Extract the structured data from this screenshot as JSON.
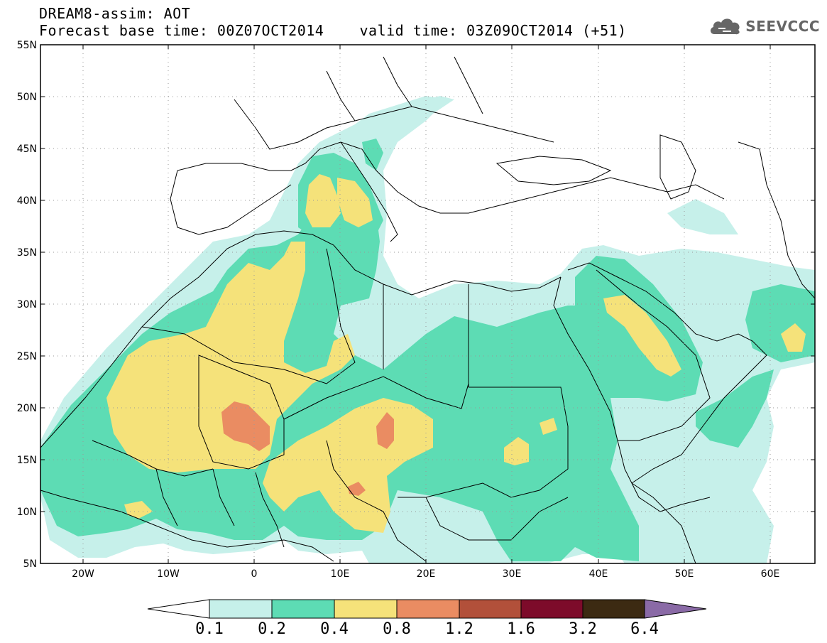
{
  "title": {
    "line1": "DREAM8-assim: AOT",
    "line2_base": "Forecast base time: 00Z07OCT2014",
    "line2_valid": "valid time: 03Z09OCT2014 (+51)"
  },
  "logo": {
    "text": "SEEVCCC",
    "icon": "cloud-icon"
  },
  "axes": {
    "lat_labels": [
      "55N",
      "50N",
      "45N",
      "40N",
      "35N",
      "30N",
      "25N",
      "20N",
      "15N",
      "10N",
      "5N"
    ],
    "lon_labels": [
      "20W",
      "10W",
      "0",
      "10E",
      "20E",
      "30E",
      "40E",
      "50E",
      "60E"
    ]
  },
  "legend": {
    "thresholds": [
      "0.1",
      "0.2",
      "0.4",
      "0.8",
      "1.2",
      "1.6",
      "3.2",
      "6.4"
    ],
    "colors": [
      "#ffffff",
      "#c6f0ea",
      "#5ddcb4",
      "#f5e27a",
      "#ea8c62",
      "#b2503a",
      "#7d0b2a",
      "#3c2a12",
      "#8a6aa6"
    ]
  },
  "colors": {
    "aot_01": "#c6f0ea",
    "aot_02": "#5ddcb4",
    "aot_04": "#f5e27a",
    "aot_08": "#ea8c62"
  }
}
